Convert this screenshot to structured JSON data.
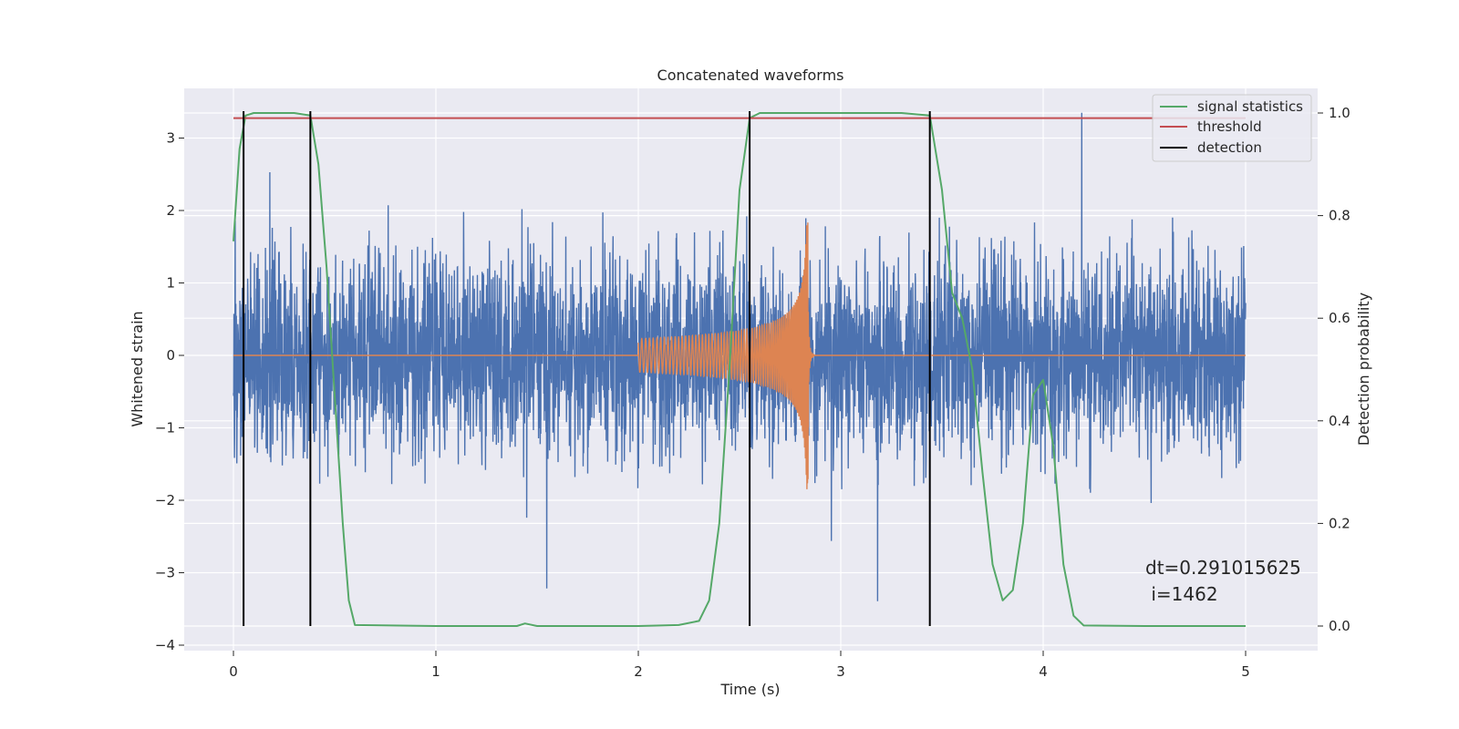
{
  "chart_data": {
    "type": "line",
    "title": "Concatenated waveforms",
    "xlabel": "Time (s)",
    "ylabel": "Whitened strain",
    "y2label": "Detection probability",
    "xlim": [
      -0.25,
      5.35
    ],
    "ylim": [
      -4.1,
      3.55
    ],
    "y2lim": [
      -0.045,
      1.035
    ],
    "x_ticks": [
      "0",
      "1",
      "2",
      "3",
      "4",
      "5"
    ],
    "y_ticks": [
      "3",
      "2",
      "1",
      "0",
      "−1",
      "−2",
      "−3",
      "−4"
    ],
    "y2_ticks": [
      "1.0",
      "0.8",
      "0.6",
      "0.4",
      "0.2",
      "0.0"
    ],
    "grid": true,
    "legend_position": "top-right",
    "colors": {
      "noise": "#4c72b0",
      "template": "#dd8452",
      "signal_statistics": "#55a868",
      "threshold": "#c44e52",
      "detection": "#000000",
      "axes_background": "#eaeaf2",
      "grid": "#ffffff"
    },
    "series": [
      {
        "name": "",
        "axis": "left",
        "kind": "noise",
        "x_range": [
          0,
          5
        ],
        "amplitude_range": [
          -3.7,
          3.35
        ],
        "description_values": "whitened detector strain noise"
      },
      {
        "name": "",
        "axis": "left",
        "kind": "chirp",
        "x_range": [
          2.0,
          2.85
        ],
        "peak_amplitude": 1.85,
        "trough_amplitude": -1.8,
        "merger_time": 2.84
      },
      {
        "name": "signal statistics",
        "axis": "right",
        "x": [
          0,
          0.03,
          0.06,
          0.1,
          0.3,
          0.38,
          0.42,
          0.46,
          0.5,
          0.54,
          0.57,
          0.6,
          1.0,
          1.4,
          1.44,
          1.5,
          2.0,
          2.2,
          2.3,
          2.35,
          2.4,
          2.45,
          2.5,
          2.55,
          2.6,
          3.0,
          3.3,
          3.44,
          3.5,
          3.55,
          3.6,
          3.65,
          3.7,
          3.75,
          3.8,
          3.85,
          3.9,
          3.95,
          4.0,
          4.05,
          4.1,
          4.15,
          4.2,
          4.5,
          5.0
        ],
        "y": [
          0.75,
          0.93,
          0.995,
          1.0,
          1.0,
          0.995,
          0.9,
          0.7,
          0.45,
          0.2,
          0.05,
          0.002,
          0.0,
          0.0,
          0.005,
          0.0,
          0.0,
          0.002,
          0.01,
          0.05,
          0.2,
          0.5,
          0.85,
          0.99,
          1.0,
          1.0,
          1.0,
          0.995,
          0.85,
          0.65,
          0.6,
          0.5,
          0.3,
          0.12,
          0.05,
          0.07,
          0.2,
          0.45,
          0.48,
          0.35,
          0.12,
          0.02,
          0.001,
          0.0,
          0.0
        ]
      },
      {
        "name": "threshold",
        "axis": "right",
        "x": [
          0,
          5
        ],
        "y": [
          0.99,
          0.99
        ]
      },
      {
        "name": "detection",
        "axis": "right",
        "x": [
          0.05,
          0.38,
          2.55,
          3.44
        ],
        "y_range": [
          0.0,
          1.0
        ]
      }
    ],
    "legend": [
      "signal statistics",
      "threshold",
      "detection"
    ],
    "annotations": [
      "dt=0.291015625",
      " i=1462"
    ]
  }
}
